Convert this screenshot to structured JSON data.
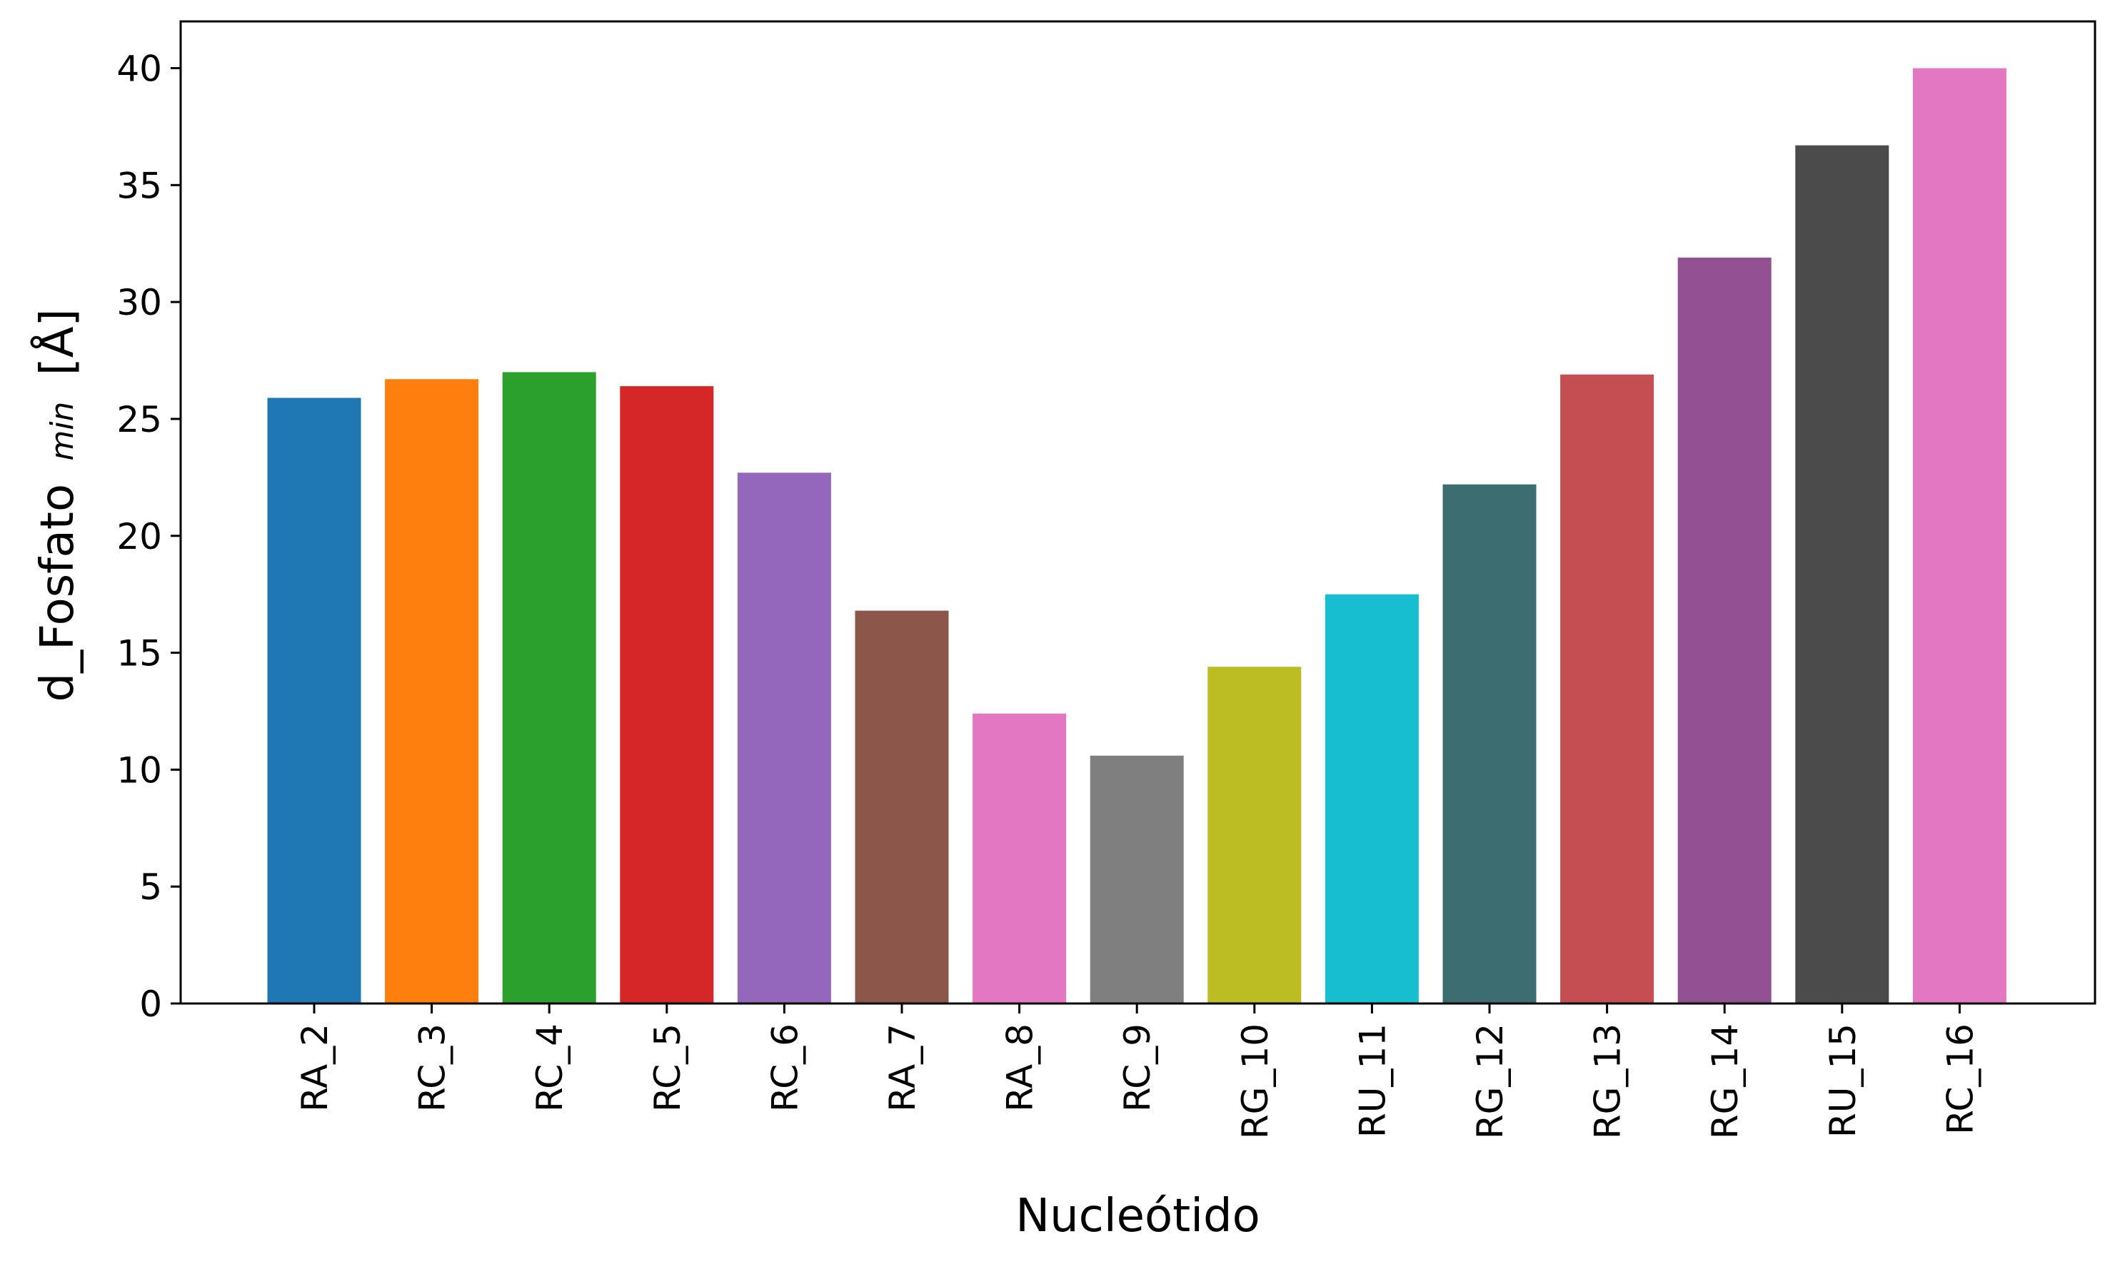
{
  "chart_data": {
    "type": "bar",
    "categories": [
      "RA_2",
      "RC_3",
      "RC_4",
      "RC_5",
      "RC_6",
      "RA_7",
      "RA_8",
      "RC_9",
      "RG_10",
      "RU_11",
      "RG_12",
      "RG_13",
      "RG_14",
      "RU_15",
      "RC_16"
    ],
    "values": [
      25.9,
      26.7,
      27.0,
      26.4,
      22.7,
      16.8,
      12.4,
      10.6,
      14.4,
      17.5,
      22.2,
      26.9,
      31.9,
      36.7,
      40.0
    ],
    "colors": [
      "#1f77b4",
      "#ff7f0e",
      "#2ca02c",
      "#d62728",
      "#9467bd",
      "#8c564b",
      "#e377c2",
      "#7f7f7f",
      "#bcbd22",
      "#17becf",
      "#3c6e71",
      "#c44e52",
      "#935194",
      "#4b4b4b",
      "#e377c2"
    ],
    "xlabel": "Nucleótido",
    "ylabel": {
      "main": "d_Fosfato",
      "sub": "min",
      "unit": "[Å]"
    },
    "ylim": [
      0,
      42
    ],
    "yticks": [
      0,
      5,
      10,
      15,
      20,
      25,
      30,
      35,
      40
    ],
    "grid": false
  }
}
